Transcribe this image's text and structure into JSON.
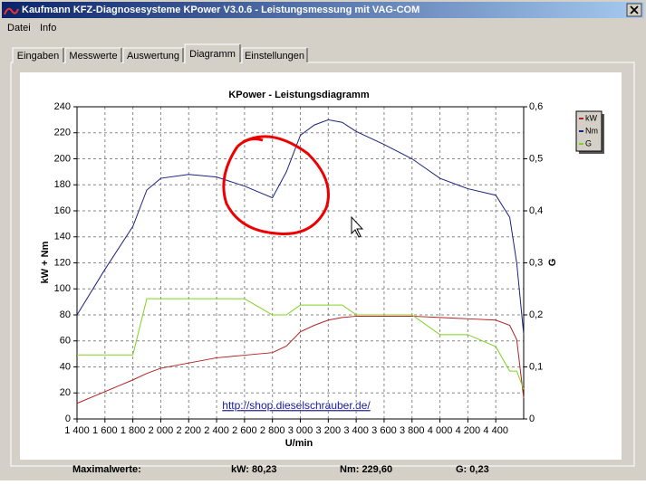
{
  "window": {
    "title": "Kaufmann KFZ-Diagnosesysteme  KPower V3.0.6 - Leistungsmessung mit VAG-COM"
  },
  "menu": [
    "Datei",
    "Info"
  ],
  "tabs": [
    "Eingaben",
    "Messwerte",
    "Auswertung",
    "Diagramm",
    "Einstellungen"
  ],
  "chart_data": {
    "type": "line",
    "title": "KPower - Leistungsdiagramm",
    "x_label": "U/min",
    "y_label": "kW + Nm",
    "y2_label": "G",
    "link": "http://shop.dieselschrauber.de/",
    "x": [
      1400,
      1600,
      1800,
      1900,
      2000,
      2200,
      2400,
      2600,
      2800,
      2900,
      3000,
      3100,
      3200,
      3300,
      3400,
      3600,
      3800,
      4000,
      4200,
      4400,
      4500,
      4550,
      4600
    ],
    "series": [
      {
        "name": "kW",
        "color": "#b22222",
        "values": [
          12,
          21,
          30,
          35,
          39,
          43,
          47,
          49,
          51,
          56,
          67,
          72,
          76,
          78,
          79,
          79,
          79,
          78,
          77,
          76,
          72,
          61,
          16
        ]
      },
      {
        "name": "Nm",
        "color": "#1a237e",
        "values": [
          80,
          115,
          148,
          176,
          185,
          188,
          186,
          179,
          170,
          190,
          218,
          226,
          230,
          228,
          221,
          211,
          200,
          185,
          177,
          172,
          155,
          120,
          65
        ]
      },
      {
        "name": "G",
        "color": "#7ed321",
        "axis": "y2",
        "values": [
          0.123,
          0.123,
          0.123,
          0.231,
          0.231,
          0.231,
          0.231,
          0.231,
          0.2,
          0.2,
          0.219,
          0.219,
          0.219,
          0.219,
          0.2,
          0.2,
          0.2,
          0.162,
          0.162,
          0.139,
          0.092,
          0.092,
          0.057
        ]
      }
    ],
    "xlim": [
      1400,
      4600
    ],
    "xticks": [
      {
        "value": 1400,
        "label": "1 400"
      },
      {
        "value": 1600,
        "label": "1 600"
      },
      {
        "value": 1800,
        "label": "1 800"
      },
      {
        "value": 2000,
        "label": "2 000"
      },
      {
        "value": 2200,
        "label": "2 200"
      },
      {
        "value": 2400,
        "label": "2 400"
      },
      {
        "value": 2600,
        "label": "2 600"
      },
      {
        "value": 2800,
        "label": "2 800"
      },
      {
        "value": 3000,
        "label": "3 000"
      },
      {
        "value": 3200,
        "label": "3 200"
      },
      {
        "value": 3400,
        "label": "3 400"
      },
      {
        "value": 3600,
        "label": "3 600"
      },
      {
        "value": 3800,
        "label": "3 800"
      },
      {
        "value": 4000,
        "label": "4 000"
      },
      {
        "value": 4200,
        "label": "4 200"
      },
      {
        "value": 4400,
        "label": "4 400"
      }
    ],
    "ylim": [
      0,
      240
    ],
    "yticks": [
      0,
      20,
      40,
      60,
      80,
      100,
      120,
      140,
      160,
      180,
      200,
      220,
      240
    ],
    "y2lim": [
      0,
      0.6
    ],
    "y2ticks": [
      0,
      {
        "value": 0.1,
        "label": "0,1"
      },
      {
        "value": 0.2,
        "label": "0,2"
      },
      {
        "value": 0.3,
        "label": "0,3"
      },
      {
        "value": 0.4,
        "label": "0,4"
      },
      {
        "value": 0.5,
        "label": "0,5"
      },
      {
        "value": 0.6,
        "label": "0,6"
      }
    ],
    "grid": true,
    "legend": "upper right"
  },
  "footer": {
    "label": "Maximalwerte:",
    "kw": "kW: 80,23",
    "nm": "Nm: 229,60",
    "g": "G: 0,23"
  }
}
